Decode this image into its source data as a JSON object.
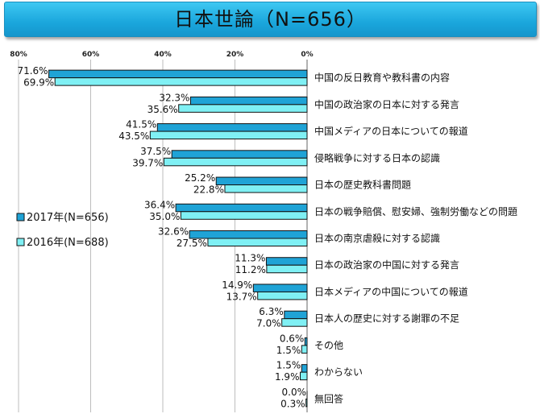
{
  "title": "日本世論（N=656）",
  "colors": {
    "series_2017": "#1fa3d6",
    "series_2016": "#7ff0f4",
    "stroke": "#111111",
    "grid": "#bdbdbd"
  },
  "chart_data": {
    "type": "bar",
    "orientation": "horizontal-reversed",
    "title": "日本世論（N=656）",
    "xlim": [
      0,
      80
    ],
    "ticks": [
      "80%",
      "60%",
      "40%",
      "20%",
      "0%"
    ],
    "tick_values": [
      80,
      60,
      40,
      20,
      0
    ],
    "grid": true,
    "legend_position": "left",
    "categories": [
      "中国の反日教育や教科書の内容",
      "中国の政治家の日本に対する発言",
      "中国メディアの日本についての報道",
      "侵略戦争に対する日本の認識",
      "日本の歴史教科書問題",
      "日本の戦争賠償、慰安婦、強制労働などの問題",
      "日本の南京虐殺に対する認識",
      "日本の政治家の中国に対する発言",
      "日本メディアの中国についての報道",
      "日本人の歴史に対する謝罪の不足",
      "その他",
      "わからない",
      "無回答"
    ],
    "series": [
      {
        "name": "2017年(N=656)",
        "values": [
          71.6,
          32.3,
          41.5,
          37.5,
          25.2,
          36.4,
          32.6,
          11.3,
          14.9,
          6.3,
          0.6,
          1.5,
          0.0
        ],
        "labels": [
          "71.6%",
          "32.3%",
          "41.5%",
          "37.5%",
          "25.2%",
          "36.4%",
          "32.6%",
          "11.3%",
          "14.9%",
          "6.3%",
          "0.6%",
          "1.5%",
          "0.0%"
        ]
      },
      {
        "name": "2016年(N=688)",
        "values": [
          69.9,
          35.6,
          43.5,
          39.7,
          22.8,
          35.0,
          27.5,
          11.2,
          13.7,
          7.0,
          1.5,
          1.9,
          0.3
        ],
        "labels": [
          "69.9%",
          "35.6%",
          "43.5%",
          "39.7%",
          "22.8%",
          "35.0%",
          "27.5%",
          "11.2%",
          "13.7%",
          "7.0%",
          "1.5%",
          "1.9%",
          "0.3%"
        ]
      }
    ]
  }
}
